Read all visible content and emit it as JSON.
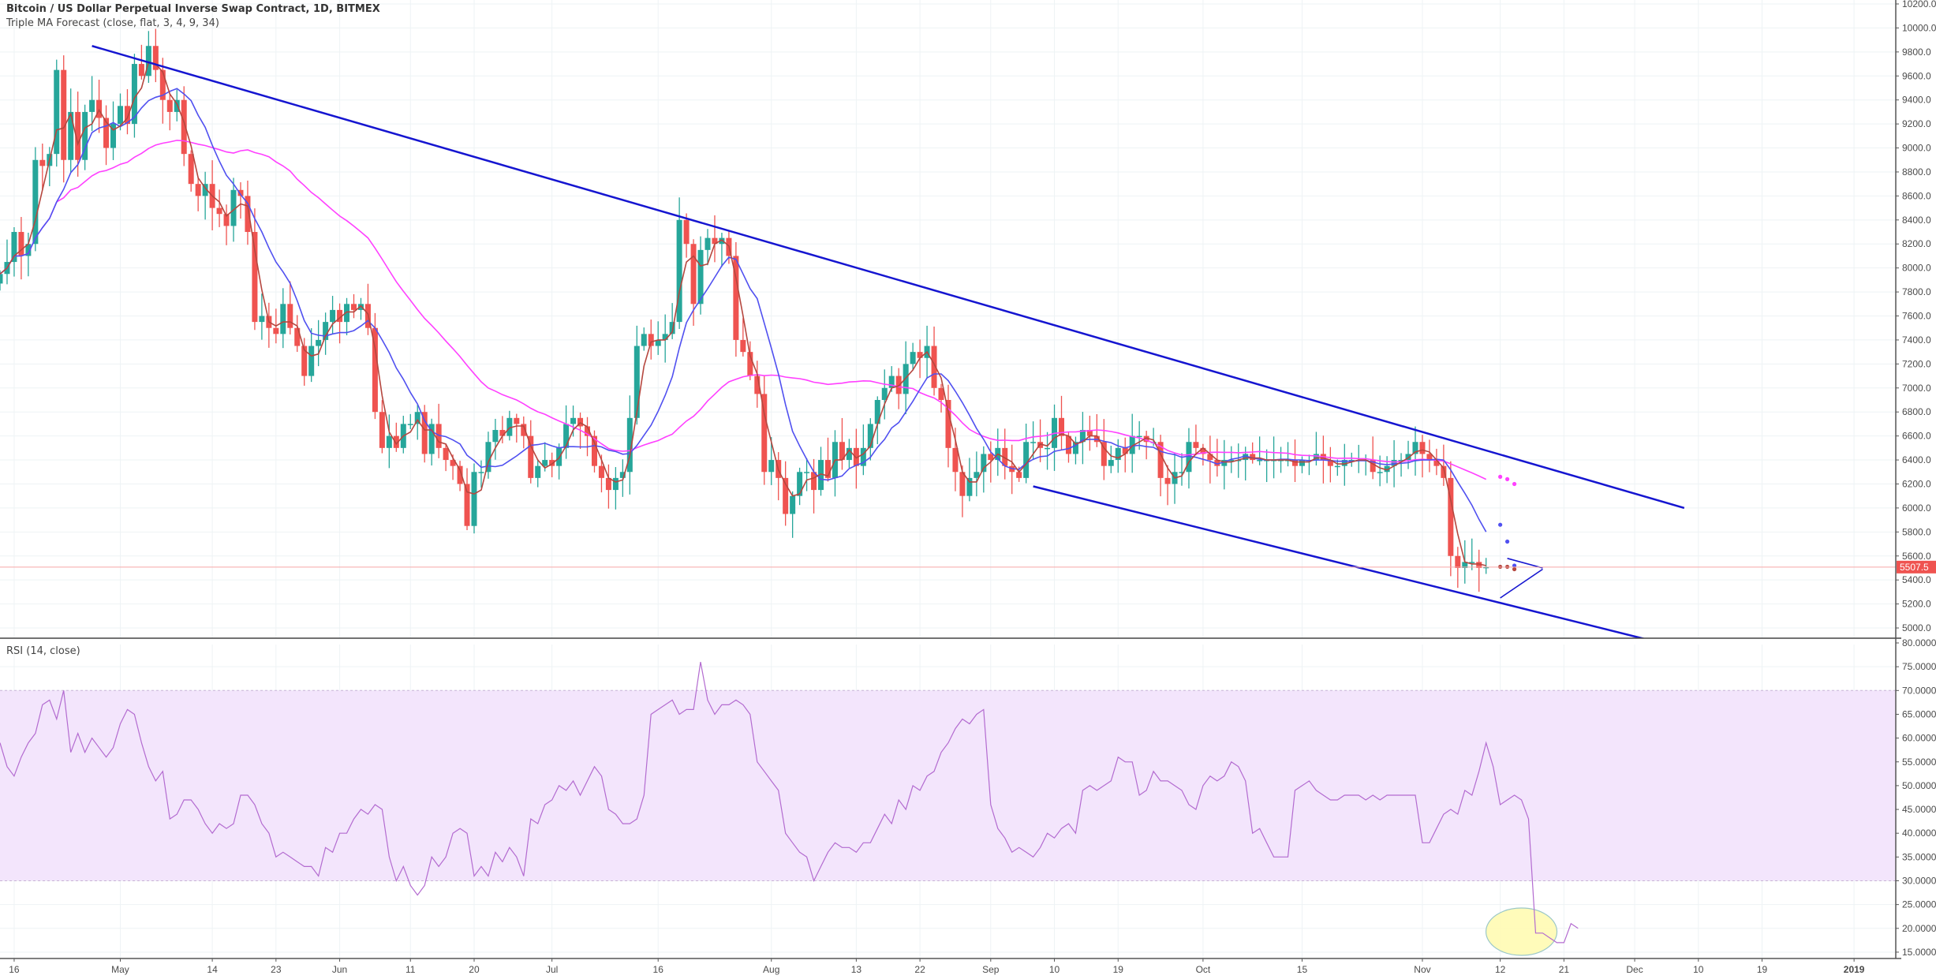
{
  "header": {
    "title": "Bitcoin / US Dollar Perpetual Inverse Swap Contract, 1D, BITMEX",
    "indicator": "Triple MA Forecast (close, flat, 3, 4, 9, 34)",
    "rsi_label": "RSI (14, close)"
  },
  "last_price": {
    "label": "5507.5",
    "value": 5507.5,
    "color": "#ef5350"
  },
  "colors": {
    "up": "#26a69a",
    "down": "#ef5350",
    "ma_fast": "#b5473f",
    "ma_mid": "#5050f0",
    "ma_slow": "#ff40ff",
    "trendline": "#1515d0",
    "rsi_line": "#b36bd0",
    "rsi_band": "#f3e5fc",
    "grid": "#eef3f5",
    "axis": "#555555",
    "highlight_fill": "#fffbb3",
    "highlight_stroke": "#9cc8c8"
  },
  "chart_data": [
    {
      "type": "candlestick",
      "title": "Bitcoin / US Dollar Perpetual Inverse Swap Contract, 1D, BITMEX",
      "xlabel": "",
      "ylabel": "Price (USD)",
      "ylim": [
        4900,
        10250
      ],
      "grid": true,
      "y_ticks": [
        5000,
        5200,
        5400,
        5600,
        5800,
        6000,
        6200,
        6400,
        6600,
        6800,
        7000,
        7200,
        7400,
        7600,
        7800,
        8000,
        8200,
        8400,
        8600,
        8800,
        9000,
        9200,
        9400,
        9600,
        9800,
        10000,
        10200
      ],
      "x_ticks": [
        {
          "label": "16",
          "day": 2
        },
        {
          "label": "May",
          "day": 17
        },
        {
          "label": "14",
          "day": 30
        },
        {
          "label": "23",
          "day": 39
        },
        {
          "label": "Jun",
          "day": 48
        },
        {
          "label": "11",
          "day": 58
        },
        {
          "label": "20",
          "day": 67
        },
        {
          "label": "Jul",
          "day": 78
        },
        {
          "label": "16",
          "day": 93
        },
        {
          "label": "Aug",
          "day": 109
        },
        {
          "label": "13",
          "day": 121
        },
        {
          "label": "22",
          "day": 130
        },
        {
          "label": "Sep",
          "day": 140
        },
        {
          "label": "10",
          "day": 149
        },
        {
          "label": "19",
          "day": 158
        },
        {
          "label": "Oct",
          "day": 170
        },
        {
          "label": "15",
          "day": 184
        },
        {
          "label": "Nov",
          "day": 201
        },
        {
          "label": "12",
          "day": 212
        },
        {
          "label": "21",
          "day": 221
        },
        {
          "label": "Dec",
          "day": 231
        },
        {
          "label": "10",
          "day": 240
        },
        {
          "label": "19",
          "day": 249
        },
        {
          "label": "2019",
          "day": 262,
          "bold": true
        }
      ],
      "start_date": "2018-04-14",
      "closes": [
        7950,
        8050,
        8300,
        8100,
        8200,
        8900,
        8850,
        8950,
        9650,
        8900,
        9300,
        8900,
        9300,
        9400,
        9250,
        9000,
        9200,
        9350,
        9200,
        9700,
        9600,
        9850,
        9650,
        9400,
        9300,
        9400,
        8950,
        8700,
        8600,
        8700,
        8500,
        8450,
        8350,
        8650,
        8600,
        8300,
        7550,
        7600,
        7500,
        7450,
        7700,
        7500,
        7350,
        7100,
        7350,
        7400,
        7550,
        7650,
        7550,
        7700,
        7650,
        7700,
        7500,
        6800,
        6500,
        6600,
        6500,
        6700,
        6700,
        6800,
        6450,
        6700,
        6500,
        6400,
        6350,
        6200,
        5850,
        6300,
        6300,
        6550,
        6650,
        6600,
        6750,
        6700,
        6600,
        6250,
        6350,
        6400,
        6350,
        6500,
        6700,
        6750,
        6680,
        6600,
        6350,
        6250,
        6150,
        6250,
        6300,
        6750,
        7350,
        7450,
        7350,
        7400,
        7450,
        7550,
        8400,
        8200,
        7700,
        8150,
        8250,
        8200,
        8250,
        8100,
        7400,
        7300,
        7100,
        6950,
        6300,
        6400,
        6250,
        5950,
        6100,
        6300,
        6300,
        6150,
        6400,
        6250,
        6550,
        6400,
        6500,
        6350,
        6500,
        6700,
        6900,
        7000,
        7100,
        6950,
        7200,
        7300,
        7250,
        7350,
        7000,
        6900,
        6500,
        6300,
        6100,
        6250,
        6300,
        6450,
        6400,
        6500,
        6350,
        6300,
        6250,
        6550,
        6550,
        6500,
        6500,
        6750,
        6600,
        6450,
        6550,
        6650,
        6600,
        6550,
        6350,
        6400,
        6500,
        6450,
        6600,
        6600,
        6550,
        6550,
        6250,
        6200,
        6300,
        6300,
        6550,
        6500,
        6450,
        6400,
        6350,
        6400,
        6400,
        6400,
        6450,
        6400,
        6400,
        6400,
        6400,
        6400,
        6400,
        6350,
        6400,
        6400,
        6450,
        6400,
        6350,
        6350,
        6400,
        6400,
        6400,
        6400,
        6300,
        6300,
        6350,
        6400,
        6400,
        6450,
        6550,
        6450,
        6400,
        6350,
        6250,
        5600,
        5500,
        5550,
        5550,
        5500,
        5507.5
      ],
      "series": [
        {
          "name": "MA fast (3/4)",
          "color": "#b5473f"
        },
        {
          "name": "MA mid (9)",
          "color": "#5050f0"
        },
        {
          "name": "MA slow (34)",
          "color": "#ff40ff"
        }
      ],
      "forecast": {
        "slow": [
          6260,
          6240,
          6200
        ],
        "mid": [
          5860,
          5720,
          5520
        ],
        "fast": [
          5510,
          5510,
          5490
        ]
      },
      "trendlines": [
        {
          "name": "upper-channel",
          "from": {
            "day": 13,
            "price": 9850
          },
          "to": {
            "day": 238,
            "price": 6000
          }
        },
        {
          "name": "lower-channel",
          "from": {
            "day": 146,
            "price": 6180
          },
          "to": {
            "day": 233,
            "price": 4900
          }
        },
        {
          "name": "triangle-upper",
          "from": {
            "day": 213,
            "price": 5580
          },
          "to": {
            "day": 218,
            "price": 5500
          }
        },
        {
          "name": "triangle-lower",
          "from": {
            "day": 212,
            "price": 5250
          },
          "to": {
            "day": 218,
            "price": 5490
          }
        }
      ]
    },
    {
      "type": "line",
      "title": "RSI (14, close)",
      "ylim": [
        15,
        80
      ],
      "y_ticks": [
        15,
        20,
        25,
        30,
        35,
        40,
        45,
        50,
        55,
        60,
        65,
        70,
        75,
        80
      ],
      "bands": {
        "upper": 70,
        "lower": 30
      },
      "values": [
        59,
        54,
        52,
        56,
        59,
        61,
        67,
        68,
        64,
        70,
        57,
        61,
        57,
        60,
        58,
        56,
        58,
        63,
        66,
        65,
        59,
        54,
        51,
        53,
        43,
        44,
        47,
        47,
        45,
        42,
        40,
        42,
        41,
        42,
        48,
        48,
        46,
        42,
        40,
        35,
        36,
        35,
        34,
        33,
        33,
        31,
        37,
        36,
        40,
        40,
        43,
        45,
        44,
        46,
        45,
        35,
        30,
        33,
        29,
        27,
        29,
        35,
        33,
        35,
        40,
        41,
        40,
        31,
        33,
        31,
        36,
        34,
        37,
        35,
        31,
        43,
        42,
        46,
        47,
        50,
        49,
        51,
        48,
        51,
        54,
        52,
        45,
        44,
        42,
        42,
        43,
        48,
        65,
        66,
        67,
        68,
        65,
        66,
        66,
        76,
        68,
        65,
        67,
        67,
        68,
        67,
        65,
        55,
        53,
        51,
        49,
        40,
        38,
        36,
        35,
        30,
        33,
        36,
        38,
        37,
        37,
        36,
        38,
        38,
        41,
        44,
        42,
        47,
        45,
        50,
        49,
        52,
        53,
        57,
        59,
        62,
        64,
        63,
        65,
        66,
        46,
        41,
        39,
        36,
        37,
        36,
        35,
        37,
        40,
        39,
        41,
        42,
        40,
        49,
        50,
        49,
        50,
        51,
        56,
        55,
        55,
        48,
        49,
        53,
        51,
        51,
        50,
        49,
        46,
        45,
        50,
        52,
        51,
        52,
        55,
        54,
        51,
        40,
        41,
        38,
        35,
        35,
        35,
        49,
        50,
        51,
        49,
        48,
        47,
        47,
        48,
        48,
        48,
        47,
        48,
        47,
        48,
        48,
        48,
        48,
        48,
        38,
        38,
        41,
        44,
        45,
        44,
        49,
        48,
        53,
        59,
        54,
        46,
        47,
        48,
        47,
        43,
        19,
        19,
        18,
        17,
        17,
        21,
        20
      ],
      "highlight": {
        "type": "ellipse",
        "center_day": 215,
        "center_rsi": 19.3,
        "note": "oversold highlight"
      }
    }
  ],
  "price_axis": {
    "labels": [
      "10200.0",
      "10000.0",
      "9800.0",
      "9600.0",
      "9400.0",
      "9200.0",
      "9000.0",
      "8800.0",
      "8600.0",
      "8400.0",
      "8200.0",
      "8000.0",
      "7800.0",
      "7600.0",
      "7400.0",
      "7200.0",
      "7000.0",
      "6800.0",
      "6600.0",
      "6400.0",
      "6200.0",
      "6000.0",
      "5800.0",
      "5600.0",
      "5400.0",
      "5200.0",
      "5000.0"
    ]
  },
  "rsi_axis": {
    "labels": [
      "80.0000",
      "75.0000",
      "70.0000",
      "65.0000",
      "60.0000",
      "55.0000",
      "50.0000",
      "45.0000",
      "40.0000",
      "35.0000",
      "30.0000",
      "25.0000",
      "20.0000",
      "15.0000"
    ]
  }
}
